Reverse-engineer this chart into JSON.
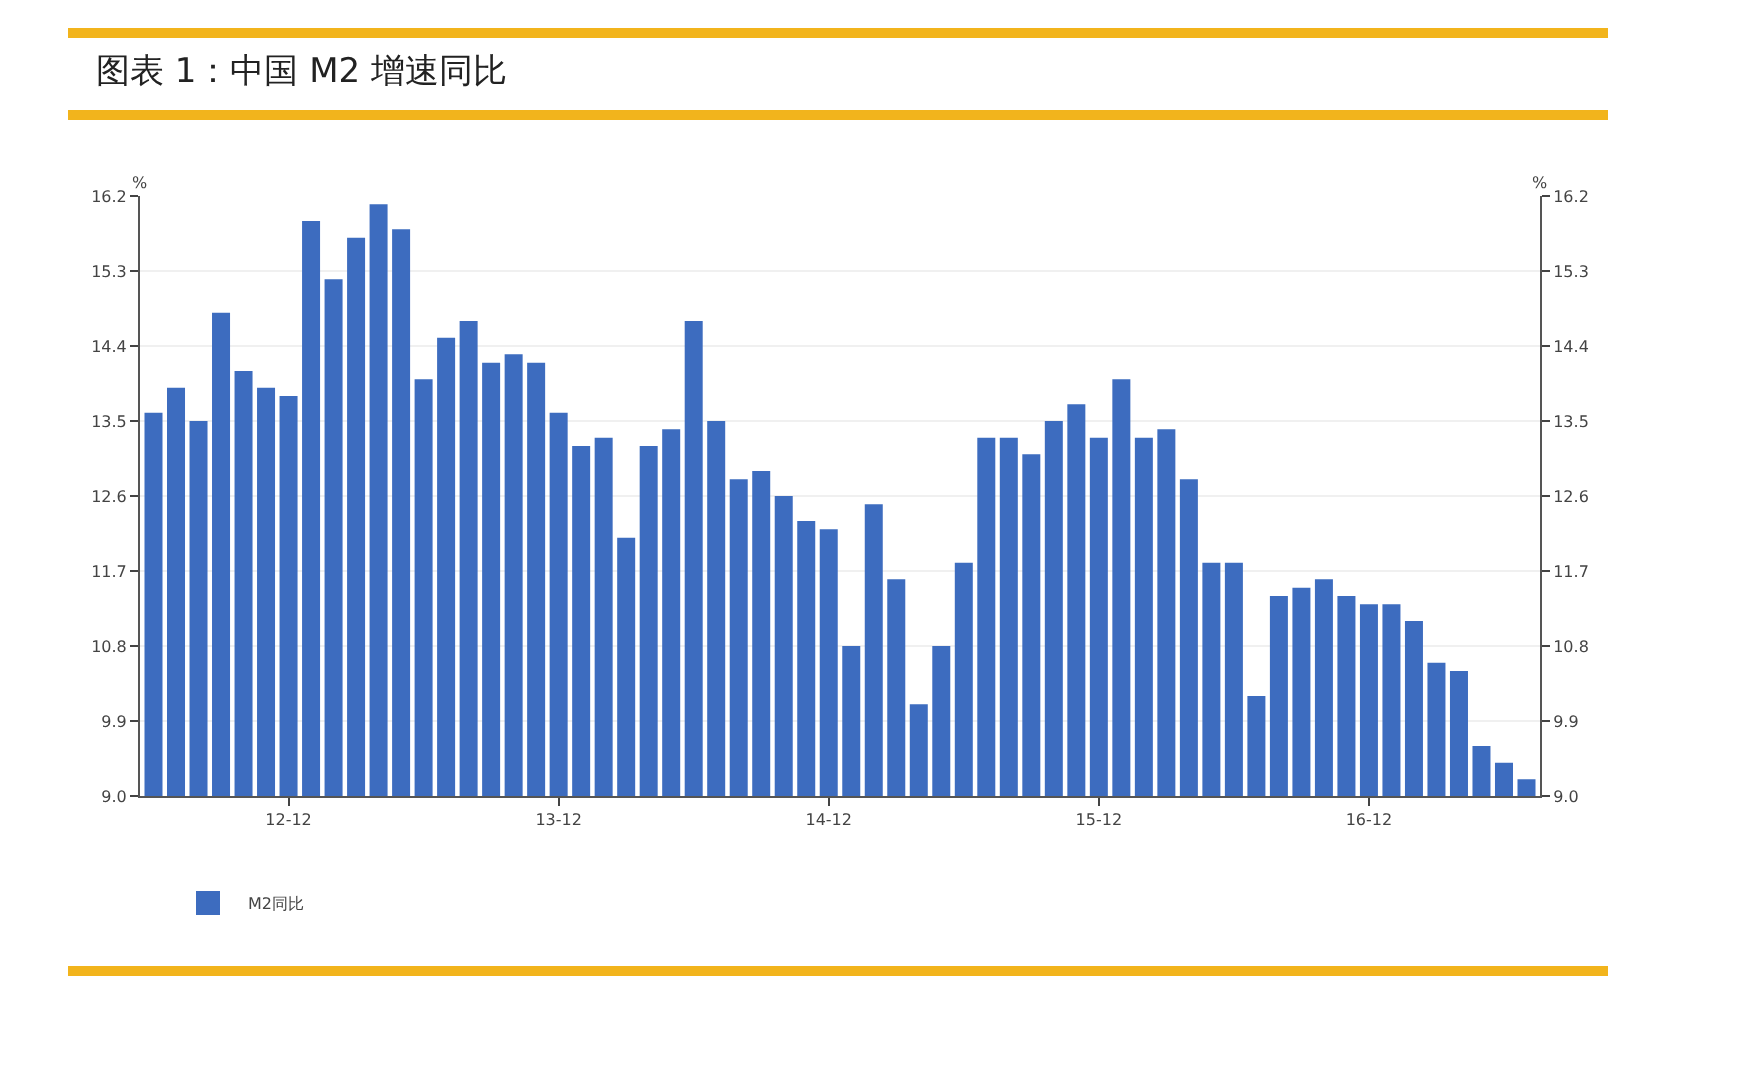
{
  "chart_data": {
    "type": "bar",
    "title": "图表 1：中国 M2 增速同比",
    "ylabel": "%",
    "y2label": "%",
    "categories": [
      null,
      null,
      null,
      null,
      null,
      null,
      "12-12",
      null,
      null,
      null,
      null,
      null,
      null,
      null,
      null,
      null,
      null,
      null,
      "13-12",
      null,
      null,
      null,
      null,
      null,
      null,
      null,
      null,
      null,
      null,
      null,
      "14-12",
      null,
      null,
      null,
      null,
      null,
      null,
      null,
      null,
      null,
      null,
      null,
      "15-12",
      null,
      null,
      null,
      null,
      null,
      null,
      null,
      null,
      null,
      null,
      null,
      "16-12",
      null,
      null,
      null,
      null,
      null,
      null,
      null
    ],
    "series": [
      {
        "name": "M2同比",
        "color": "#3d6cbf",
        "values": [
          13.6,
          13.9,
          13.5,
          14.8,
          14.1,
          13.9,
          13.8,
          15.9,
          15.2,
          15.7,
          16.1,
          15.8,
          14.0,
          14.5,
          14.7,
          14.2,
          14.3,
          14.2,
          13.6,
          13.2,
          13.3,
          12.1,
          13.2,
          13.4,
          14.7,
          13.5,
          12.8,
          12.9,
          12.6,
          12.3,
          12.2,
          10.8,
          12.5,
          11.6,
          10.1,
          10.8,
          11.8,
          13.3,
          13.3,
          13.1,
          13.5,
          13.7,
          13.3,
          14.0,
          13.3,
          13.4,
          12.8,
          11.8,
          11.8,
          10.2,
          11.4,
          11.5,
          11.6,
          11.4,
          11.3,
          11.3,
          11.1,
          10.6,
          10.5,
          9.6,
          9.4,
          9.2
        ]
      }
    ],
    "ylim": [
      9.0,
      16.2
    ],
    "yticks": [
      {
        "value": 9,
        "label": "9.0"
      },
      9.9,
      10.8,
      11.7,
      12.6,
      13.5,
      14.4,
      15.3,
      16.2
    ],
    "y2lim": [
      9.0,
      16.2
    ],
    "y2ticks": [
      {
        "value": 9,
        "label": "9.0"
      },
      9.9,
      10.8,
      11.7,
      12.6,
      13.5,
      14.4,
      15.3,
      16.2
    ],
    "grid": "y",
    "legend": "bottom"
  }
}
